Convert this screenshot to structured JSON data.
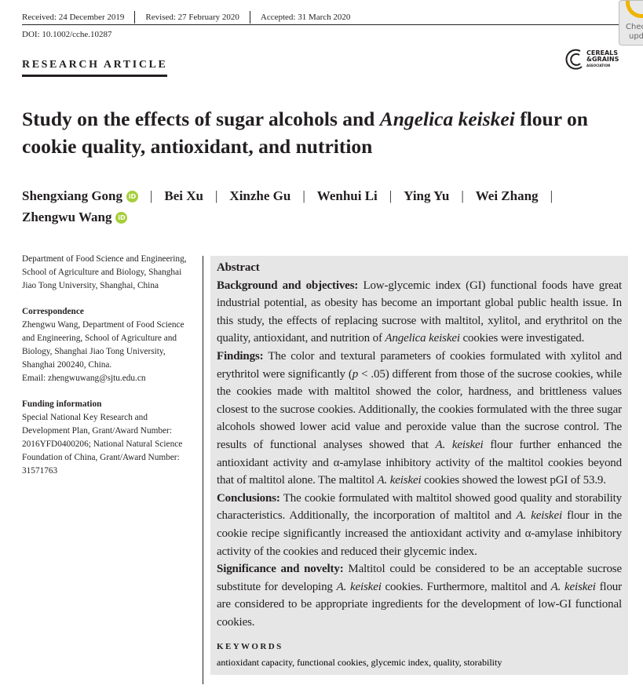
{
  "header": {
    "received": "Received: 24 December 2019",
    "revised": "Revised: 27 February 2020",
    "accepted": "Accepted: 31 March 2020",
    "doi": "DOI: 10.1002/cche.10287",
    "check_updates": [
      "Chec",
      "upd"
    ],
    "article_type": "RESEARCH ARTICLE",
    "logo": {
      "line1": "CEREALS",
      "line2": "&GRAINS",
      "line3": "ASSOCIATION"
    }
  },
  "title": {
    "before": "Study on the effects of sugar alcohols and ",
    "italic": "Angelica keiskei",
    "after": " flour on cookie quality, antioxidant, and nutrition"
  },
  "authors": [
    {
      "name": "Shengxiang Gong",
      "orcid": true
    },
    {
      "name": "Bei Xu"
    },
    {
      "name": "Xinzhe Gu"
    },
    {
      "name": "Wenhui Li"
    },
    {
      "name": "Ying Yu"
    },
    {
      "name": "Wei Zhang"
    },
    {
      "name": "Zhengwu Wang",
      "orcid": true
    }
  ],
  "orcid_label": "iD",
  "sidebar": {
    "affiliation": "Department of Food Science and Engineering, School of Agriculture and Biology, Shanghai Jiao Tong University, Shanghai, China",
    "correspondence_heading": "Correspondence",
    "correspondence": "Zhengwu Wang, Department of Food Science and Engineering, School of Agriculture and Biology, Shanghai Jiao Tong University, Shanghai 200240, China.",
    "email": "Email: zhengwuwang@sjtu.edu.cn",
    "funding_heading": "Funding information",
    "funding": "Special National Key Research and Development Plan, Grant/Award Number: 2016YFD0400206; National Natural Science Foundation of China, Grant/Award Number: 31571763"
  },
  "abstract": {
    "heading": "Abstract",
    "paragraphs": [
      [
        {
          "b": "Background and objectives:"
        },
        {
          "t": " Low-glycemic index (GI) functional foods have great industrial potential, as obesity has become an important global public health issue. In this study, the effects of replacing sucrose with maltitol, xylitol, and erythritol on the quality, antioxidant, and nutrition of "
        },
        {
          "i": "Angelica keiskei"
        },
        {
          "t": " cookies were investigated."
        }
      ],
      [
        {
          "b": "Findings:"
        },
        {
          "t": " The color and textural parameters of cookies formulated with xylitol and erythritol were significantly ("
        },
        {
          "i": "p"
        },
        {
          "t": " < .05) different from those of the sucrose cookies, while the cookies made with maltitol showed the color, hardness, and brittleness values closest to the sucrose cookies. Additionally, the cookies formulated with the three sugar alcohols showed lower acid value and peroxide value than the sucrose control. The results of functional analyses showed that "
        },
        {
          "i": "A. keiskei"
        },
        {
          "t": " flour further enhanced the antioxidant activity and α-amylase inhibitory activity of the maltitol cookies beyond that of maltitol alone. The maltitol "
        },
        {
          "i": "A. keiskei"
        },
        {
          "t": " cookies showed the lowest pGI of 53.9."
        }
      ],
      [
        {
          "b": "Conclusions:"
        },
        {
          "t": " The cookie formulated with maltitol showed good quality and storability characteristics. Additionally, the incorporation of maltitol and "
        },
        {
          "i": "A. keiskei"
        },
        {
          "t": " flour in the cookie recipe significantly increased the antioxidant activity and α-amylase inhibitory activity of the cookies and reduced their glycemic index."
        }
      ],
      [
        {
          "b": "Significance and novelty:"
        },
        {
          "t": " Maltitol could be considered to be an acceptable sucrose substitute for developing "
        },
        {
          "i": "A. keiskei"
        },
        {
          "t": " cookies. Furthermore, maltitol and "
        },
        {
          "i": "A. keiskei"
        },
        {
          "t": " flour are considered to be appropriate ingredients for the development of low-GI functional cookies."
        }
      ]
    ],
    "keywords_heading": "KEYWORDS",
    "keywords": "antioxidant capacity, functional cookies, glycemic index, quality, storability"
  }
}
